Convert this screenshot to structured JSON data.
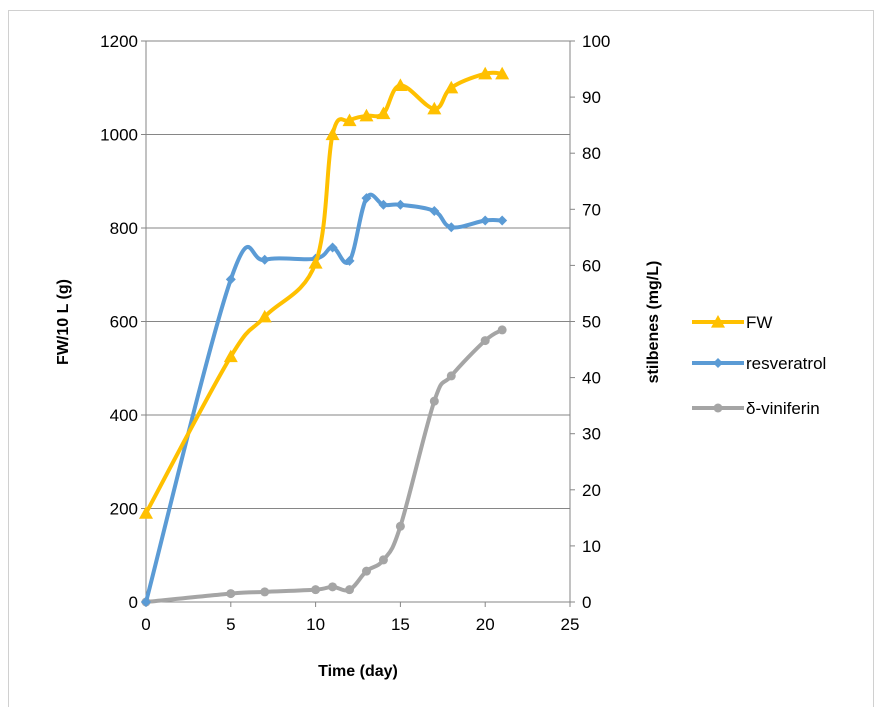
{
  "chart_data": {
    "type": "line",
    "xlabel": "Time (day)",
    "ylabel_left": "FW/10 L (g)",
    "ylabel_right": "stilbenes (mg/L)",
    "xlim": [
      0,
      25
    ],
    "ylim_left": [
      0,
      1200
    ],
    "ylim_right": [
      0,
      100
    ],
    "x_ticks": [
      0,
      5,
      10,
      15,
      20,
      25
    ],
    "y_left_ticks": [
      0,
      200,
      400,
      600,
      800,
      1000,
      1200
    ],
    "y_right_ticks": [
      0,
      10,
      20,
      30,
      40,
      50,
      60,
      70,
      80,
      90,
      100
    ],
    "grid": true,
    "legend_position": "right",
    "series": [
      {
        "name": "FW",
        "axis": "left",
        "color": "#FFC000",
        "marker": "triangle",
        "x": [
          0,
          5,
          7,
          10,
          11,
          12,
          13,
          14,
          15,
          17,
          18,
          20,
          21
        ],
        "y": [
          190,
          525,
          610,
          725,
          1000,
          1030,
          1040,
          1045,
          1105,
          1055,
          1100,
          1130,
          1130
        ]
      },
      {
        "name": "resveratrol",
        "axis": "right",
        "color": "#5B9BD5",
        "marker": "diamond",
        "x": [
          0,
          5,
          7,
          10,
          11,
          12,
          13,
          14,
          15,
          17,
          18,
          20,
          21
        ],
        "y": [
          0,
          57.5,
          61,
          61.2,
          63.2,
          60.8,
          72,
          70.8,
          70.8,
          69.7,
          66.8,
          68,
          68
        ]
      },
      {
        "name": "δ-viniferin",
        "axis": "right",
        "color": "#A5A5A5",
        "marker": "circle",
        "x": [
          0,
          5,
          7,
          10,
          11,
          12,
          13,
          14,
          15,
          17,
          18,
          20,
          21
        ],
        "y": [
          0,
          1.5,
          1.8,
          2.2,
          2.7,
          2.2,
          5.5,
          7.5,
          13.5,
          35.8,
          40.3,
          46.6,
          48.5
        ]
      }
    ]
  }
}
